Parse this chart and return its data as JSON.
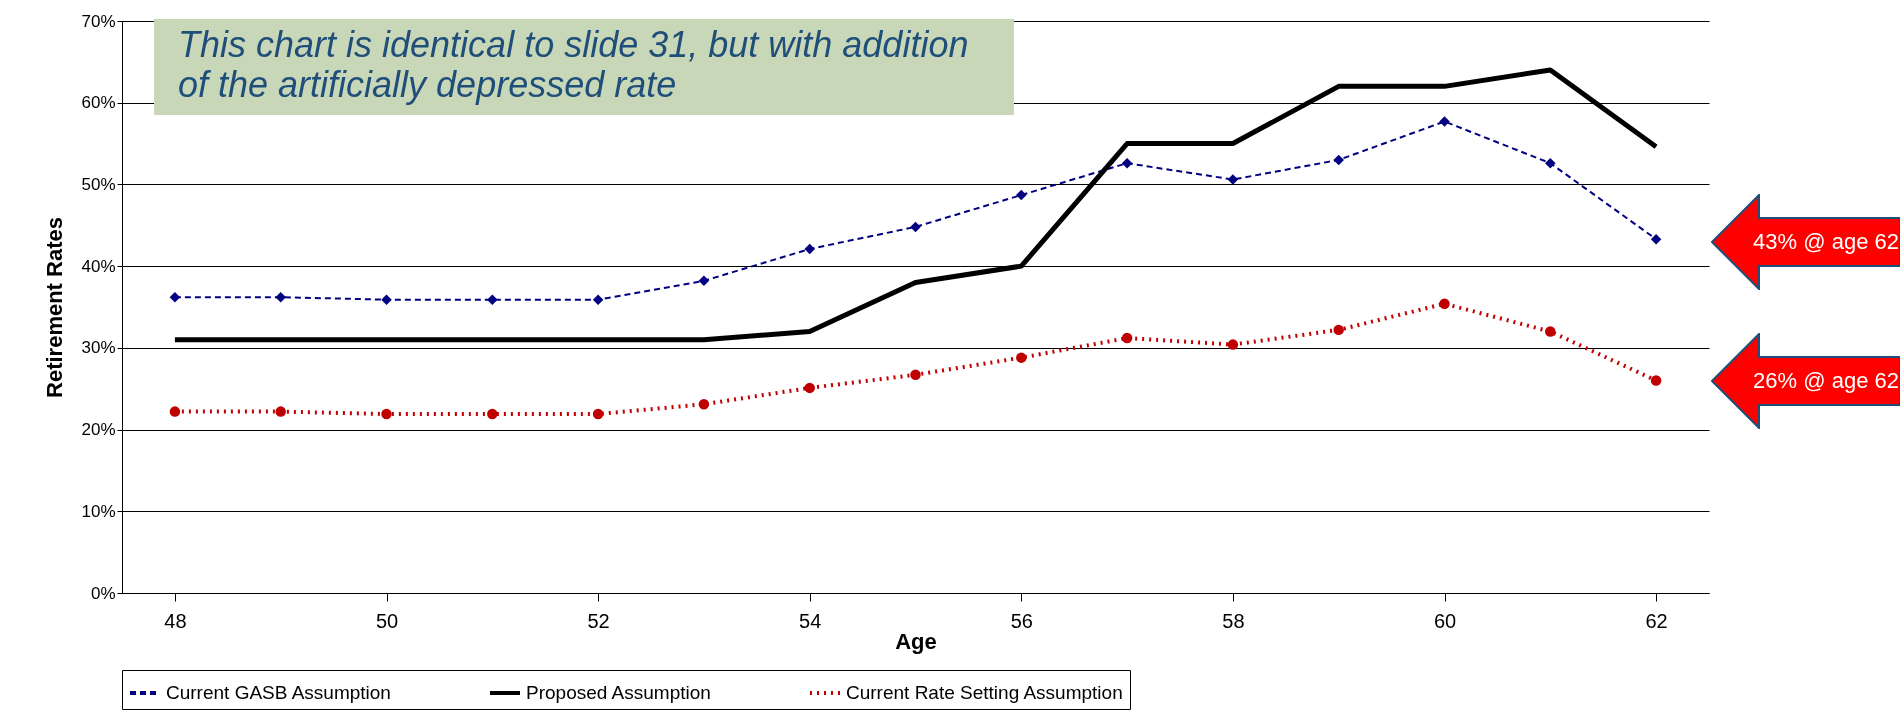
{
  "chart_data": {
    "type": "line",
    "xlabel": "Age",
    "ylabel": "Retirement Rates",
    "x": [
      48,
      49,
      50,
      51,
      52,
      53,
      54,
      55,
      56,
      57,
      58,
      59,
      60,
      61,
      62
    ],
    "xlim": [
      47.5,
      62.5
    ],
    "xticks": [
      48,
      50,
      52,
      54,
      56,
      58,
      60,
      62
    ],
    "ylim": [
      0,
      70
    ],
    "yticks": [
      {
        "value": 0,
        "label": "0%"
      },
      {
        "value": 10,
        "label": "10%"
      },
      {
        "value": 20,
        "label": "20%"
      },
      {
        "value": 30,
        "label": "30%"
      },
      {
        "value": 40,
        "label": "40%"
      },
      {
        "value": 50,
        "label": "50%"
      },
      {
        "value": 60,
        "label": "60%"
      },
      {
        "value": 70,
        "label": "70%"
      }
    ],
    "grid": "y",
    "legend": "bottom",
    "series": [
      {
        "name": "Current GASB Assumption",
        "color": "#000080",
        "marker": "diamond",
        "line_style": "dashed",
        "values": [
          36.2,
          36.2,
          35.9,
          35.9,
          35.9,
          38.2,
          42.1,
          44.8,
          48.7,
          52.6,
          50.6,
          53.0,
          57.7,
          52.6,
          43.3
        ]
      },
      {
        "name": "Proposed Assumption",
        "color": "#000000",
        "marker": "none",
        "line_style": "solid",
        "values": [
          31,
          31,
          31,
          31,
          31,
          31,
          32,
          38,
          40,
          55,
          55,
          62,
          62,
          64,
          54.6
        ]
      },
      {
        "name": "Current Rate Setting Assumption",
        "color": "#c00000",
        "marker": "circle",
        "line_style": "dotted",
        "values": [
          22.2,
          22.2,
          21.9,
          21.9,
          21.9,
          23.1,
          25.1,
          26.7,
          28.8,
          31.2,
          30.4,
          32.2,
          35.4,
          32.0,
          26.0
        ]
      }
    ],
    "annotations": [
      "This chart is identical to slide 31, but with addition of the artificially depressed rate",
      "43% @ age 62",
      "26% @ age 62"
    ]
  }
}
